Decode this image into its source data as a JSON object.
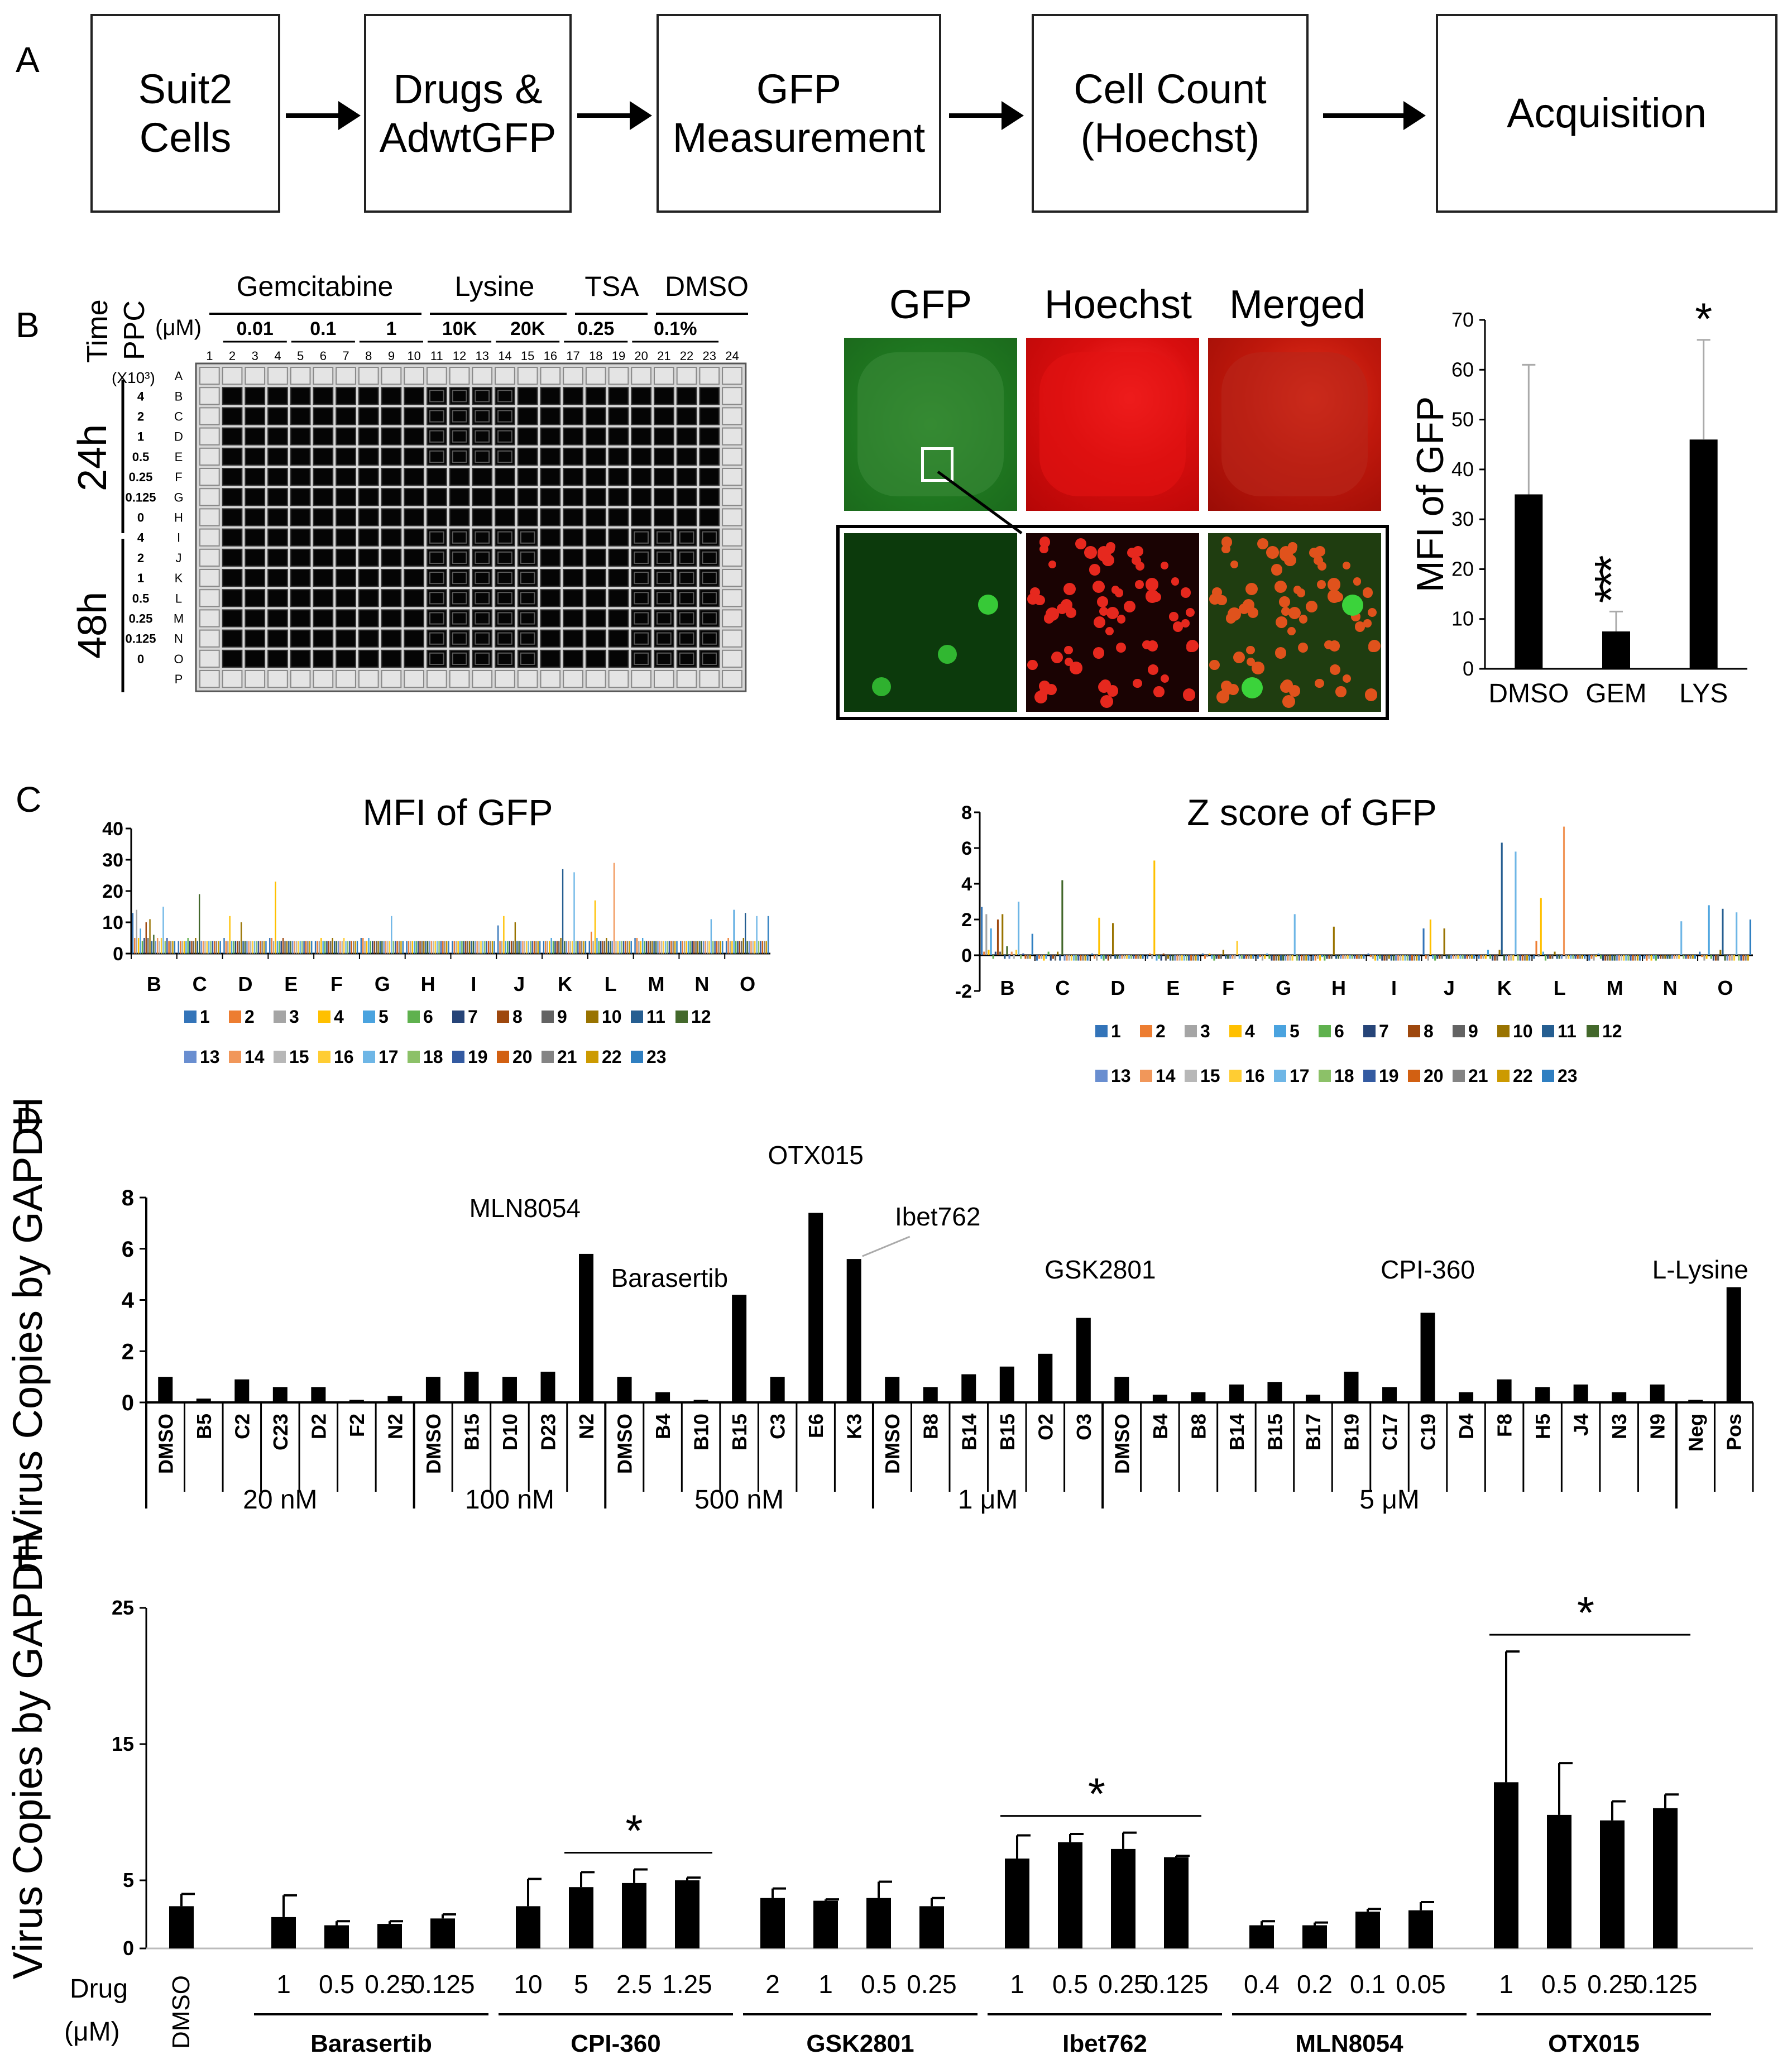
{
  "panel_letters": {
    "a": "A",
    "b": "B",
    "c": "C",
    "d": "D",
    "e": "E"
  },
  "flow": {
    "box1": "Suit2\nCells",
    "box2": "Drugs &\nAdwtGFP",
    "box3": "GFP\nMeasurement",
    "box4": "Cell Count\n(Hoechst)",
    "box5": "Acquisition"
  },
  "plate": {
    "time_label": "Time",
    "ppc_label": "PPC",
    "um_label": "(μM)",
    "x103_label": "(X10³)",
    "drug_groups": [
      "Gemcitabine",
      "Lysine",
      "TSA",
      "DMSO"
    ],
    "conc_labels": [
      "0.01",
      "0.1",
      "1",
      "10K",
      "20K",
      "0.25",
      "0.1%"
    ],
    "columns": [
      "1",
      "2",
      "3",
      "4",
      "5",
      "6",
      "7",
      "8",
      "9",
      "10",
      "11",
      "12",
      "13",
      "14",
      "15",
      "16",
      "17",
      "18",
      "19",
      "20",
      "21",
      "22",
      "23",
      "24"
    ],
    "rows": [
      "A",
      "B",
      "C",
      "D",
      "E",
      "F",
      "G",
      "H",
      "I",
      "J",
      "K",
      "L",
      "M",
      "N",
      "O",
      "P"
    ],
    "ppc_values": [
      "4",
      "2",
      "1",
      "0.5",
      "0.25",
      "0.125",
      "0",
      "4",
      "2",
      "1",
      "0.5",
      "0.25",
      "0.125",
      "0"
    ],
    "time_24": "24h",
    "time_48": "48h"
  },
  "micro": {
    "gfp": "GFP",
    "hoechst": "Hoechst",
    "merged": "Merged"
  },
  "chart_data": [
    {
      "id": "B-bar",
      "type": "bar",
      "title": "",
      "ylabel": "MFI of GFP",
      "categories": [
        "DMSO",
        "GEM",
        "LYS"
      ],
      "values": [
        35,
        7.5,
        46
      ],
      "errors": [
        26,
        4,
        20
      ],
      "significance": [
        "",
        "***",
        "*"
      ],
      "ylim": [
        0,
        70
      ],
      "yticks": [
        "0",
        "10",
        "20",
        "30",
        "40",
        "50",
        "60",
        "70"
      ]
    },
    {
      "id": "C-mfi",
      "type": "bar",
      "title": "MFI of GFP",
      "categories": [
        "B",
        "C",
        "D",
        "E",
        "F",
        "G",
        "H",
        "I",
        "J",
        "K",
        "L",
        "M",
        "N",
        "O"
      ],
      "ylim": [
        0,
        40
      ],
      "yticks": [
        "0",
        "10",
        "20",
        "30",
        "40"
      ],
      "series_names": [
        "1",
        "2",
        "3",
        "4",
        "5",
        "6",
        "7",
        "8",
        "9",
        "10",
        "11",
        "12",
        "13",
        "14",
        "15",
        "16",
        "17",
        "18",
        "19",
        "20",
        "21",
        "22",
        "23"
      ],
      "series_colors": [
        "#3374b9",
        "#ed7d31",
        "#a5a5a5",
        "#ffc000",
        "#4aa3df",
        "#5fb14e",
        "#264478",
        "#9e480e",
        "#636363",
        "#997300",
        "#255e91",
        "#43682b",
        "#698ed0",
        "#f1975a",
        "#b7b7b7",
        "#ffcd33",
        "#6eb6e6",
        "#8cc168",
        "#335aa1",
        "#d26012",
        "#848484",
        "#cc9a00",
        "#2f7fc1"
      ],
      "values": [
        [
          13,
          4,
          5,
          5,
          4,
          5,
          4,
          4,
          9,
          4,
          4,
          5,
          4,
          4
        ],
        [
          5,
          4,
          4,
          5,
          4,
          5,
          4,
          4,
          4,
          4,
          7,
          5,
          4,
          5
        ],
        [
          14,
          4,
          4,
          4,
          4,
          4,
          4,
          4,
          4,
          4,
          4,
          4,
          4,
          4
        ],
        [
          5,
          4,
          12,
          23,
          5,
          4,
          4,
          4,
          12,
          4,
          17,
          4,
          4,
          4
        ],
        [
          8,
          4,
          4,
          4,
          4,
          5,
          4,
          4,
          4,
          5,
          5,
          5,
          4,
          14
        ],
        [
          4,
          5,
          4,
          4,
          4,
          4,
          4,
          4,
          4,
          4,
          4,
          4,
          4,
          4
        ],
        [
          5,
          4,
          4,
          4,
          4,
          4,
          4,
          4,
          4,
          4,
          4,
          4,
          4,
          4
        ],
        [
          10,
          4,
          4,
          5,
          4,
          4,
          4,
          4,
          4,
          4,
          4,
          4,
          4,
          4
        ],
        [
          5,
          4,
          4,
          4,
          4,
          4,
          4,
          4,
          4,
          4,
          4,
          4,
          4,
          4
        ],
        [
          11,
          5,
          10,
          4,
          5,
          4,
          4,
          4,
          10,
          5,
          5,
          4,
          4,
          5
        ],
        [
          4,
          4,
          4,
          4,
          4,
          4,
          4,
          4,
          4,
          27,
          4,
          4,
          4,
          13
        ],
        [
          6,
          19,
          4,
          4,
          4,
          4,
          4,
          4,
          4,
          4,
          4,
          4,
          4,
          4
        ],
        [
          4,
          4,
          4,
          4,
          4,
          4,
          4,
          4,
          4,
          4,
          4,
          4,
          4,
          4
        ],
        [
          5,
          4,
          4,
          4,
          4,
          4,
          4,
          4,
          4,
          4,
          29,
          4,
          4,
          4
        ],
        [
          4,
          4,
          4,
          4,
          4,
          4,
          4,
          4,
          4,
          4,
          4,
          4,
          4,
          4
        ],
        [
          5,
          4,
          4,
          4,
          5,
          4,
          4,
          4,
          4,
          4,
          4,
          4,
          4,
          4
        ],
        [
          15,
          4,
          4,
          4,
          4,
          12,
          4,
          4,
          4,
          26,
          4,
          4,
          11,
          12
        ],
        [
          4,
          4,
          4,
          4,
          4,
          4,
          4,
          4,
          4,
          4,
          4,
          4,
          4,
          4
        ],
        [
          5,
          4,
          4,
          4,
          4,
          4,
          4,
          4,
          4,
          4,
          4,
          4,
          4,
          4
        ],
        [
          4,
          4,
          4,
          4,
          4,
          4,
          4,
          4,
          4,
          4,
          4,
          4,
          4,
          4
        ],
        [
          4,
          4,
          4,
          4,
          4,
          4,
          4,
          4,
          4,
          4,
          4,
          4,
          4,
          4
        ],
        [
          4,
          4,
          4,
          4,
          4,
          4,
          4,
          4,
          4,
          4,
          4,
          4,
          4,
          4
        ],
        [
          4,
          4,
          4,
          4,
          4,
          4,
          4,
          4,
          4,
          4,
          4,
          4,
          4,
          12
        ]
      ]
    },
    {
      "id": "C-z",
      "type": "bar",
      "title": "Z score of GFP",
      "categories": [
        "B",
        "C",
        "D",
        "E",
        "F",
        "G",
        "H",
        "I",
        "J",
        "K",
        "L",
        "M",
        "N",
        "O"
      ],
      "ylim": [
        -2,
        8
      ],
      "yticks": [
        "-2",
        "0",
        "2",
        "4",
        "6",
        "8"
      ],
      "series_names": [
        "1",
        "2",
        "3",
        "4",
        "5",
        "6",
        "7",
        "8",
        "9",
        "10",
        "11",
        "12",
        "13",
        "14",
        "15",
        "16",
        "17",
        "18",
        "19",
        "20",
        "21",
        "22",
        "23"
      ],
      "series_colors": [
        "#3374b9",
        "#ed7d31",
        "#a5a5a5",
        "#ffc000",
        "#4aa3df",
        "#5fb14e",
        "#264478",
        "#9e480e",
        "#636363",
        "#997300",
        "#255e91",
        "#43682b",
        "#698ed0",
        "#f1975a",
        "#b7b7b7",
        "#ffcd33",
        "#6eb6e6",
        "#8cc168",
        "#335aa1",
        "#d26012",
        "#848484",
        "#cc9a00",
        "#2f7fc1"
      ],
      "values": [
        [
          2.7,
          -0.3,
          0.1,
          -0.2,
          0.1,
          -0.2,
          -0.3,
          0.1,
          1.5,
          -0.2,
          -0.2,
          -0.3,
          -0.2,
          0.2
        ],
        [
          0.2,
          -0.2,
          -0.2,
          0.1,
          -0.2,
          -0.1,
          -0.3,
          -0.1,
          -0.2,
          -0.2,
          0.8,
          -0.2,
          -0.3,
          -0.1
        ],
        [
          2.3,
          -0.2,
          -0.3,
          -0.2,
          -0.1,
          -0.3,
          -0.2,
          -0.2,
          -0.3,
          -0.2,
          -0.1,
          -0.3,
          -0.2,
          -0.3
        ],
        [
          0.3,
          -0.3,
          2.1,
          5.3,
          0.1,
          -0.2,
          -0.3,
          -0.3,
          2.0,
          -0.2,
          3.2,
          -0.1,
          -0.3,
          -0.2
        ],
        [
          1.5,
          -0.2,
          -0.2,
          -0.3,
          -0.2,
          0.1,
          -0.1,
          -0.3,
          -0.2,
          0.3,
          0.2,
          0.1,
          -0.2,
          2.8
        ],
        [
          -0.2,
          0.2,
          -0.3,
          -0.2,
          -0.3,
          -0.2,
          -0.3,
          -0.2,
          -0.3,
          -0.2,
          -0.3,
          -0.2,
          -0.3,
          -0.2
        ],
        [
          0.2,
          -0.3,
          -0.2,
          -0.3,
          -0.2,
          -0.3,
          -0.2,
          -0.3,
          -0.2,
          -0.3,
          -0.2,
          -0.3,
          -0.2,
          -0.3
        ],
        [
          2.0,
          -0.2,
          -0.3,
          0.1,
          -0.2,
          -0.3,
          -0.2,
          -0.3,
          -0.2,
          -0.3,
          -0.2,
          -0.3,
          -0.2,
          -0.3
        ],
        [
          0.2,
          -0.3,
          -0.2,
          -0.3,
          -0.2,
          -0.3,
          -0.2,
          -0.3,
          -0.2,
          -0.3,
          -0.2,
          -0.3,
          -0.2,
          -0.3
        ],
        [
          2.3,
          0.2,
          1.8,
          -0.2,
          0.3,
          -0.3,
          1.6,
          -0.2,
          1.5,
          0.3,
          0.2,
          -0.3,
          -0.2,
          0.3
        ],
        [
          -0.2,
          -0.3,
          -0.2,
          -0.3,
          -0.2,
          -0.3,
          -0.2,
          -0.3,
          -0.2,
          6.3,
          -0.2,
          -0.3,
          -0.2,
          2.6
        ],
        [
          0.5,
          4.2,
          -0.2,
          -0.3,
          -0.2,
          -0.3,
          -0.2,
          -0.3,
          -0.2,
          -0.3,
          -0.2,
          -0.3,
          -0.2,
          -0.3
        ],
        [
          -0.2,
          -0.3,
          -0.2,
          -0.3,
          -0.2,
          -0.3,
          -0.2,
          -0.3,
          -0.2,
          -0.3,
          -0.2,
          -0.3,
          -0.2,
          -0.3
        ],
        [
          0.2,
          -0.3,
          -0.2,
          -0.3,
          -0.2,
          -0.3,
          -0.2,
          -0.3,
          -0.2,
          -0.3,
          7.2,
          -0.3,
          -0.2,
          -0.3
        ],
        [
          -0.2,
          -0.3,
          -0.2,
          -0.3,
          -0.2,
          -0.3,
          -0.2,
          -0.3,
          -0.2,
          -0.3,
          -0.2,
          -0.3,
          -0.2,
          -0.3
        ],
        [
          0.3,
          -0.3,
          -0.2,
          -0.3,
          0.8,
          -0.3,
          -0.2,
          -0.3,
          -0.2,
          -0.3,
          -0.2,
          -0.3,
          -0.2,
          -0.3
        ],
        [
          3.0,
          -0.3,
          -0.2,
          -0.3,
          -0.2,
          2.3,
          -0.2,
          -0.3,
          -0.2,
          5.8,
          -0.2,
          -0.3,
          1.9,
          2.4
        ],
        [
          -0.2,
          -0.3,
          -0.2,
          -0.3,
          -0.2,
          -0.3,
          -0.2,
          -0.3,
          -0.2,
          -0.3,
          -0.2,
          -0.3,
          -0.2,
          -0.3
        ],
        [
          0.1,
          -0.3,
          -0.2,
          -0.3,
          -0.2,
          -0.3,
          -0.2,
          -0.3,
          -0.2,
          -0.3,
          -0.2,
          -0.3,
          -0.2,
          -0.3
        ],
        [
          -0.2,
          -0.3,
          -0.2,
          -0.3,
          -0.2,
          -0.3,
          -0.2,
          -0.3,
          -0.2,
          -0.3,
          -0.2,
          -0.3,
          -0.2,
          -0.3
        ],
        [
          -0.2,
          -0.3,
          -0.2,
          -0.3,
          -0.2,
          -0.3,
          -0.2,
          -0.3,
          -0.2,
          -0.3,
          -0.2,
          -0.3,
          -0.2,
          -0.3
        ],
        [
          -0.2,
          -0.3,
          -0.2,
          -0.3,
          -0.2,
          -0.3,
          -0.2,
          -0.3,
          -0.2,
          -0.3,
          -0.2,
          -0.3,
          -0.2,
          -0.3
        ],
        [
          1.2,
          -0.3,
          -0.2,
          -0.3,
          -0.2,
          -0.3,
          -0.2,
          -0.3,
          -0.2,
          -0.3,
          -0.2,
          -0.3,
          -0.2,
          2.0
        ]
      ]
    },
    {
      "id": "D",
      "type": "bar",
      "ylabel": "Virus Copies by GAPDH",
      "ylim": [
        0,
        8
      ],
      "yticks": [
        "0",
        "2",
        "4",
        "6",
        "8"
      ],
      "categories": [
        "DMSO",
        "B5",
        "C2",
        "C23",
        "D2",
        "F2",
        "N2",
        "DMSO",
        "B15",
        "D10",
        "D23",
        "N2",
        "DMSO",
        "B4",
        "B10",
        "B15",
        "C3",
        "E6",
        "K3",
        "DMSO",
        "B8",
        "B14",
        "B15",
        "O2",
        "O3",
        "DMSO",
        "B4",
        "B8",
        "B14",
        "B15",
        "B17",
        "B19",
        "C17",
        "C19",
        "D4",
        "F8",
        "H5",
        "J4",
        "N3",
        "N9",
        "Neg",
        "Pos"
      ],
      "values": [
        1.0,
        0.15,
        0.9,
        0.6,
        0.6,
        0.1,
        0.25,
        1.0,
        1.2,
        1.0,
        1.2,
        5.8,
        1.0,
        0.4,
        0.1,
        4.2,
        1.0,
        7.4,
        5.6,
        1.0,
        0.6,
        1.1,
        1.4,
        1.9,
        3.3,
        1.0,
        0.3,
        0.4,
        0.7,
        0.8,
        0.3,
        1.2,
        0.6,
        3.5,
        0.4,
        0.9,
        0.6,
        0.7,
        0.4,
        0.7,
        0.1,
        4.5
      ],
      "groups": [
        {
          "label": "20 nM",
          "start": 0,
          "end": 6
        },
        {
          "label": "100 nM",
          "start": 7,
          "end": 11
        },
        {
          "label": "500 nM",
          "start": 12,
          "end": 18
        },
        {
          "label": "1 μM",
          "start": 19,
          "end": 24
        },
        {
          "label": "5 μM",
          "start": 25,
          "end": 39
        }
      ],
      "annotations": [
        "MLN8054",
        "Barasertib",
        "OTX015",
        "Ibet762",
        "GSK2801",
        "CPI-360",
        "L-Lysine"
      ]
    },
    {
      "id": "E",
      "type": "bar",
      "ylabel": "Virus Copies by GAPDH",
      "xlabel": "Drug (μM)",
      "ylim": [
        0,
        25
      ],
      "yticks": [
        "0",
        "5",
        "15",
        "25"
      ],
      "dmso": {
        "label": "DMSO",
        "value": 3.1,
        "error": 0.9
      },
      "groups": [
        {
          "drug": "Barasertib",
          "conc": [
            "1",
            "0.5",
            "0.25",
            "0.125"
          ],
          "values": [
            2.3,
            1.7,
            1.8,
            2.2
          ],
          "errors": [
            1.6,
            0.3,
            0.2,
            0.3
          ],
          "sig": ""
        },
        {
          "drug": "CPI-360",
          "conc": [
            "10",
            "5",
            "2.5",
            "1.25"
          ],
          "values": [
            3.1,
            4.5,
            4.8,
            5.0
          ],
          "errors": [
            2.0,
            1.1,
            1.0,
            0.2
          ],
          "sig": "*"
        },
        {
          "drug": "GSK2801",
          "conc": [
            "2",
            "1",
            "0.5",
            "0.25"
          ],
          "values": [
            3.7,
            3.5,
            3.7,
            3.1
          ],
          "errors": [
            0.7,
            0.1,
            1.2,
            0.6
          ],
          "sig": ""
        },
        {
          "drug": "Ibet762",
          "conc": [
            "1",
            "0.5",
            "0.25",
            "0.125"
          ],
          "values": [
            6.6,
            7.8,
            7.3,
            6.7
          ],
          "errors": [
            1.7,
            0.6,
            1.2,
            0.1
          ],
          "sig": "*"
        },
        {
          "drug": "MLN8054",
          "conc": [
            "0.4",
            "0.2",
            "0.1",
            "0.05"
          ],
          "values": [
            1.7,
            1.7,
            2.7,
            2.8
          ],
          "errors": [
            0.3,
            0.2,
            0.2,
            0.6
          ],
          "sig": ""
        },
        {
          "drug": "OTX015",
          "conc": [
            "1",
            "0.5",
            "0.25",
            "0.125"
          ],
          "values": [
            12.2,
            9.8,
            9.4,
            10.3
          ],
          "errors": [
            9.6,
            3.8,
            1.4,
            1.0
          ],
          "sig": "*"
        }
      ]
    }
  ]
}
